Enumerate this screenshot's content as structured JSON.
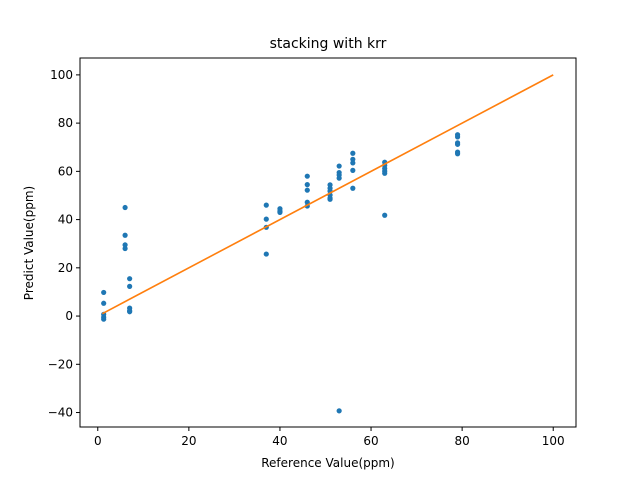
{
  "chart_data": {
    "type": "scatter",
    "title": "stacking with krr",
    "xlabel": "Reference Value(ppm)",
    "ylabel": "Predict Value(ppm)",
    "xlim": [
      -3.9,
      105
    ],
    "ylim": [
      -46,
      107
    ],
    "xticks": [
      0,
      20,
      40,
      60,
      80,
      100
    ],
    "yticks": [
      -40,
      -20,
      0,
      20,
      40,
      60,
      80,
      100
    ],
    "tick_labels_x": [
      "0",
      "20",
      "40",
      "60",
      "80",
      "100"
    ],
    "tick_labels_y": [
      "−40",
      "−20",
      "0",
      "20",
      "40",
      "60",
      "80",
      "100"
    ],
    "grid": false,
    "legend": "none",
    "series": [
      {
        "type": "scatter",
        "color": "#1f77b4",
        "points": [
          [
            1.3,
            9.8
          ],
          [
            1.3,
            5.3
          ],
          [
            1.3,
            0.7
          ],
          [
            1.3,
            -0.5
          ],
          [
            1.3,
            -1.3
          ],
          [
            6,
            45
          ],
          [
            6,
            33.5
          ],
          [
            6,
            29.5
          ],
          [
            6,
            28
          ],
          [
            7,
            15.5
          ],
          [
            7,
            12.3
          ],
          [
            7,
            3.3
          ],
          [
            7,
            2.2
          ],
          [
            7,
            1.8
          ],
          [
            37,
            46
          ],
          [
            37,
            40.2
          ],
          [
            37,
            36.8
          ],
          [
            37,
            25.7
          ],
          [
            40,
            44.5
          ],
          [
            40,
            43.5
          ],
          [
            40,
            43
          ],
          [
            46,
            58
          ],
          [
            46,
            54.5
          ],
          [
            46,
            52.2
          ],
          [
            46,
            47.2
          ],
          [
            46,
            45.6
          ],
          [
            51,
            54.4
          ],
          [
            51,
            53
          ],
          [
            51,
            51.8
          ],
          [
            51,
            50.2
          ],
          [
            51,
            48.9
          ],
          [
            51,
            48.4
          ],
          [
            53,
            62.2
          ],
          [
            53,
            59.5
          ],
          [
            53,
            58.5
          ],
          [
            53,
            57.2
          ],
          [
            53,
            -39.3
          ],
          [
            56,
            67.5
          ],
          [
            56,
            65
          ],
          [
            56,
            63.5
          ],
          [
            56,
            60.4
          ],
          [
            56,
            53
          ],
          [
            63,
            63.8
          ],
          [
            63,
            62.5
          ],
          [
            63,
            61.2
          ],
          [
            63,
            60.1
          ],
          [
            63,
            59.2
          ],
          [
            63,
            41.8
          ],
          [
            79,
            75.2
          ],
          [
            79,
            74.3
          ],
          [
            79,
            71.8
          ],
          [
            79,
            71.2
          ],
          [
            79,
            68
          ],
          [
            79,
            67.3
          ]
        ]
      },
      {
        "type": "line",
        "color": "#ff7f0e",
        "points": [
          [
            1,
            1
          ],
          [
            100,
            100
          ]
        ]
      }
    ]
  }
}
